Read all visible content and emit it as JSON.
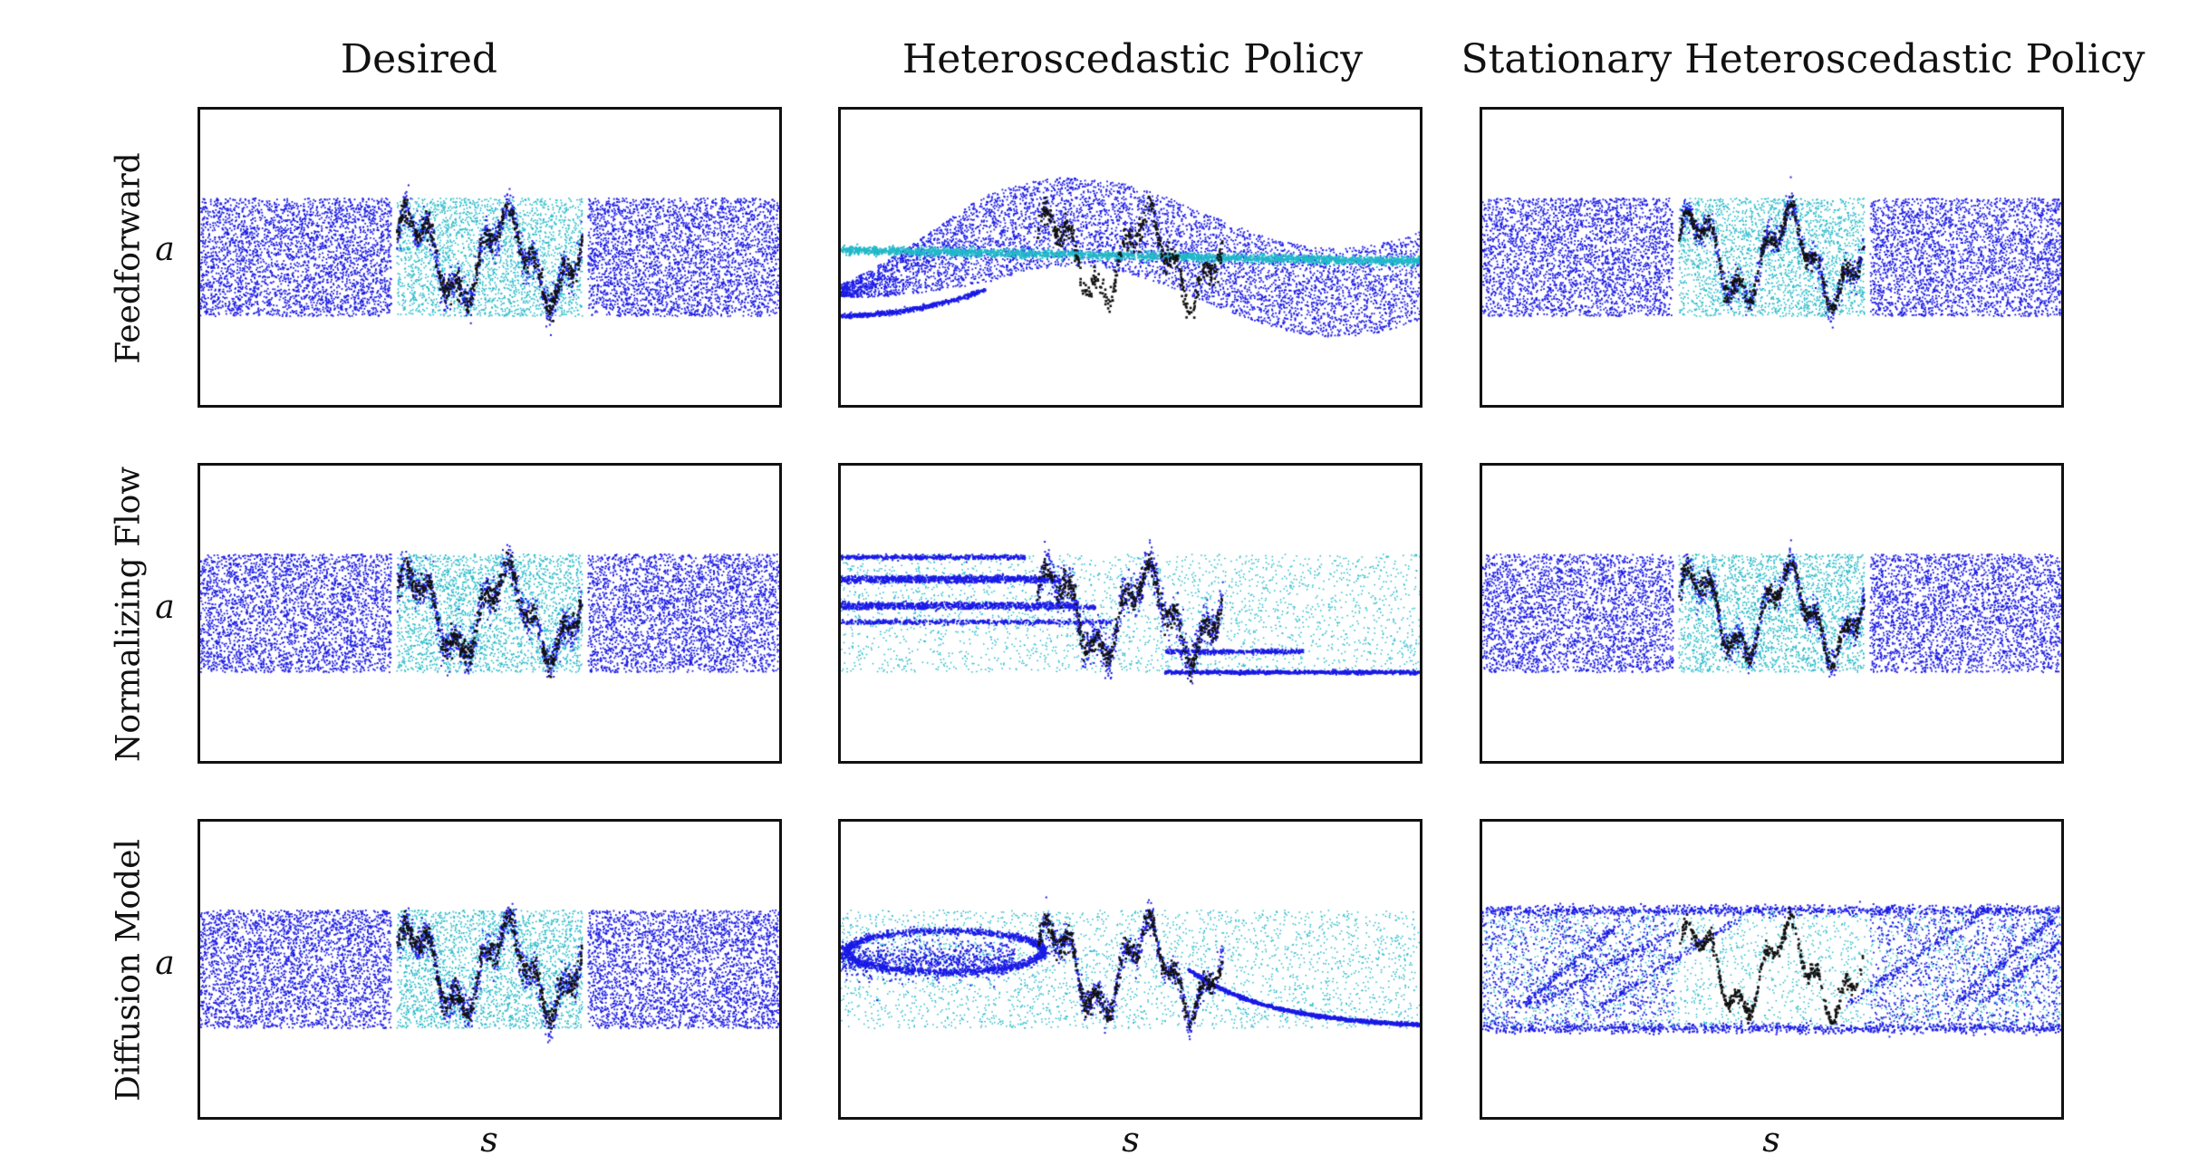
{
  "chart_data": {
    "type": "scatter",
    "column_titles": [
      "Desired",
      "Heteroscedastic Policy",
      "Stationary Heteroscedastic Policy"
    ],
    "row_labels": [
      "Feedforward",
      "Normalizing Flow",
      "Diffusion Model"
    ],
    "xlabel": "s",
    "ylabel": "a",
    "grid": false,
    "colors": {
      "samples": "#1a1ae6",
      "uniform": "#20b8c8",
      "demo": "#111111"
    },
    "panels": [
      {
        "row": "Feedforward",
        "column": "Desired",
        "pattern": "desired"
      },
      {
        "row": "Feedforward",
        "column": "Heteroscedastic Policy",
        "pattern": "ff-hetero"
      },
      {
        "row": "Feedforward",
        "column": "Stationary Heteroscedastic Policy",
        "pattern": "stationary"
      },
      {
        "row": "Normalizing Flow",
        "column": "Desired",
        "pattern": "desired"
      },
      {
        "row": "Normalizing Flow",
        "column": "Heteroscedastic Policy",
        "pattern": "nf-hetero"
      },
      {
        "row": "Normalizing Flow",
        "column": "Stationary Heteroscedastic Policy",
        "pattern": "stationary"
      },
      {
        "row": "Diffusion Model",
        "column": "Desired",
        "pattern": "desired"
      },
      {
        "row": "Diffusion Model",
        "column": "Heteroscedastic Policy",
        "pattern": "dm-hetero"
      },
      {
        "row": "Diffusion Model",
        "column": "Stationary Heteroscedastic Policy",
        "pattern": "stationary-dm"
      }
    ]
  }
}
